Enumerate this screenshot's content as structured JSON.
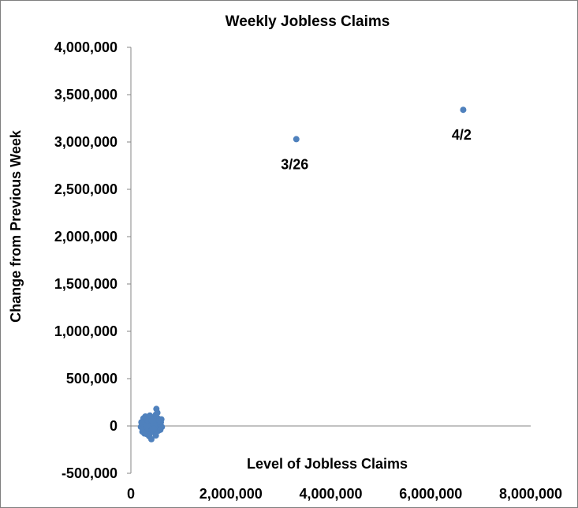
{
  "chart_data": {
    "type": "scatter",
    "title": "Weekly Jobless Claims",
    "xlabel": "Level of Jobless Claims",
    "ylabel": "Change from Previous Week",
    "xlim": [
      0,
      8000000
    ],
    "ylim": [
      -500000,
      4000000
    ],
    "x_ticks": [
      "0",
      "2,000,000",
      "4,000,000",
      "6,000,000",
      "8,000,000"
    ],
    "y_ticks": [
      "-500,000",
      "0",
      "500,000",
      "1,000,000",
      "1,500,000",
      "2,000,000",
      "2,500,000",
      "3,000,000",
      "3,500,000",
      "4,000,000"
    ],
    "marker_color": "#4f81bd",
    "grid": false,
    "legend": "none",
    "annotations": [
      {
        "text": "3/26",
        "x": 3310000,
        "y": 3030000
      },
      {
        "text": "4/2",
        "x": 6650000,
        "y": 3340000
      }
    ],
    "points": [
      {
        "x": 3310000,
        "y": 3030000
      },
      {
        "x": 6650000,
        "y": 3340000
      },
      {
        "x": 200000,
        "y": -10000
      },
      {
        "x": 220000,
        "y": 20000
      },
      {
        "x": 240000,
        "y": -30000
      },
      {
        "x": 260000,
        "y": 10000
      },
      {
        "x": 280000,
        "y": 40000
      },
      {
        "x": 300000,
        "y": -20000
      },
      {
        "x": 320000,
        "y": 60000
      },
      {
        "x": 340000,
        "y": -50000
      },
      {
        "x": 360000,
        "y": 30000
      },
      {
        "x": 380000,
        "y": -80000
      },
      {
        "x": 400000,
        "y": 70000
      },
      {
        "x": 420000,
        "y": -40000
      },
      {
        "x": 440000,
        "y": 90000
      },
      {
        "x": 460000,
        "y": -60000
      },
      {
        "x": 480000,
        "y": 50000
      },
      {
        "x": 500000,
        "y": 120000
      },
      {
        "x": 520000,
        "y": -20000
      },
      {
        "x": 540000,
        "y": 80000
      },
      {
        "x": 560000,
        "y": -30000
      },
      {
        "x": 580000,
        "y": 20000
      },
      {
        "x": 600000,
        "y": 40000
      },
      {
        "x": 620000,
        "y": -10000
      },
      {
        "x": 250000,
        "y": 80000
      },
      {
        "x": 290000,
        "y": 100000
      },
      {
        "x": 330000,
        "y": -90000
      },
      {
        "x": 370000,
        "y": -110000
      },
      {
        "x": 410000,
        "y": -140000
      },
      {
        "x": 450000,
        "y": 30000
      },
      {
        "x": 490000,
        "y": -70000
      },
      {
        "x": 510000,
        "y": 180000
      },
      {
        "x": 530000,
        "y": 140000
      },
      {
        "x": 570000,
        "y": 60000
      },
      {
        "x": 230000,
        "y": -60000
      },
      {
        "x": 310000,
        "y": 10000
      },
      {
        "x": 350000,
        "y": 50000
      },
      {
        "x": 390000,
        "y": 0
      },
      {
        "x": 430000,
        "y": -20000
      },
      {
        "x": 470000,
        "y": 10000
      },
      {
        "x": 550000,
        "y": -50000
      },
      {
        "x": 590000,
        "y": -40000
      },
      {
        "x": 210000,
        "y": 40000
      },
      {
        "x": 270000,
        "y": -80000
      },
      {
        "x": 340000,
        "y": 90000
      },
      {
        "x": 420000,
        "y": 60000
      },
      {
        "x": 500000,
        "y": -100000
      },
      {
        "x": 610000,
        "y": 70000
      },
      {
        "x": 380000,
        "y": 110000
      },
      {
        "x": 460000,
        "y": -30000
      }
    ]
  }
}
